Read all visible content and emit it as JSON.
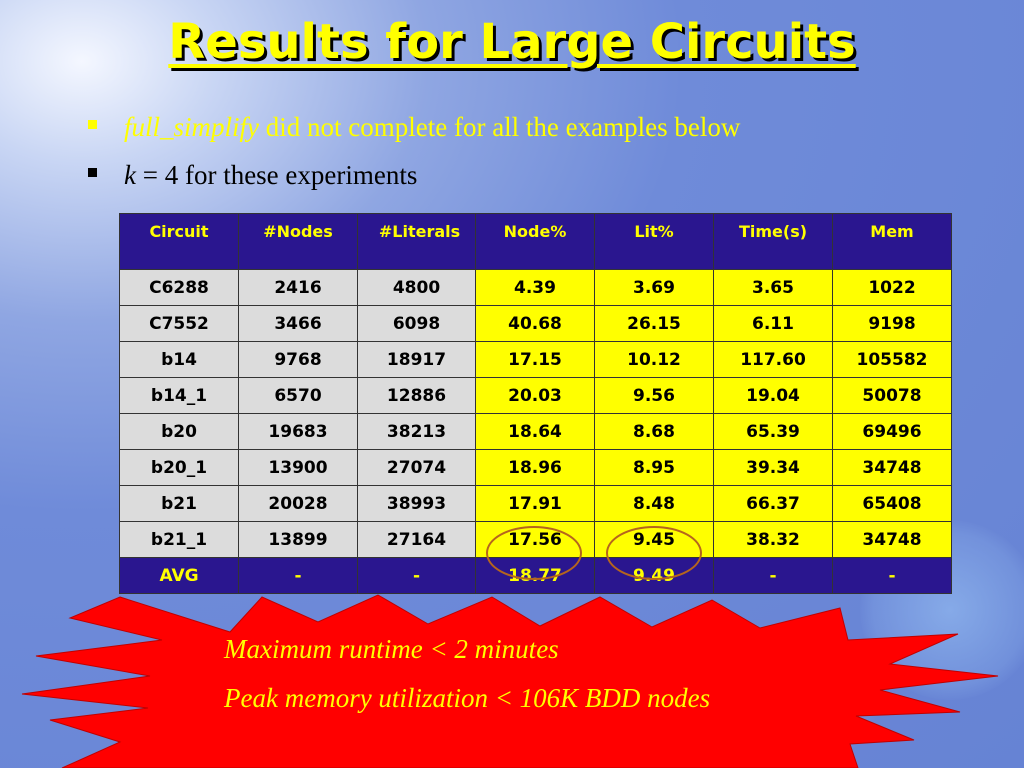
{
  "title": "Results for Large Circuits",
  "bullets": [
    {
      "em": "full_simplify",
      "text": " did not complete for all the examples below"
    },
    {
      "em": "k",
      "text": " = 4 for these experiments"
    }
  ],
  "table": {
    "headers": [
      "Circuit",
      "#Nodes",
      "#Literals",
      "Node%",
      "Lit%",
      "Time(s)",
      "Mem"
    ],
    "rows": [
      [
        "C6288",
        "2416",
        "4800",
        "4.39",
        "3.69",
        "3.65",
        "1022"
      ],
      [
        "C7552",
        "3466",
        "6098",
        "40.68",
        "26.15",
        "6.11",
        "9198"
      ],
      [
        "b14",
        "9768",
        "18917",
        "17.15",
        "10.12",
        "117.60",
        "105582"
      ],
      [
        "b14_1",
        "6570",
        "12886",
        "20.03",
        "9.56",
        "19.04",
        "50078"
      ],
      [
        "b20",
        "19683",
        "38213",
        "18.64",
        "8.68",
        "65.39",
        "69496"
      ],
      [
        "b20_1",
        "13900",
        "27074",
        "18.96",
        "8.95",
        "39.34",
        "34748"
      ],
      [
        "b21",
        "20028",
        "38993",
        "17.91",
        "8.48",
        "66.37",
        "65408"
      ],
      [
        "b21_1",
        "13899",
        "27164",
        "17.56",
        "9.45",
        "38.32",
        "34748"
      ]
    ],
    "avg": [
      "AVG",
      "-",
      "-",
      "18.77",
      "9.49",
      "-",
      "-"
    ]
  },
  "callout": {
    "line1": "Maximum runtime < 2 minutes",
    "line2": "Peak memory utilization < 106K BDD nodes"
  },
  "colors": {
    "title": "#ffff00",
    "header_bg": "#2a168f",
    "highlight": "#ffff00",
    "gray_cell": "#dcdcdc",
    "burst": "#ff0000"
  }
}
